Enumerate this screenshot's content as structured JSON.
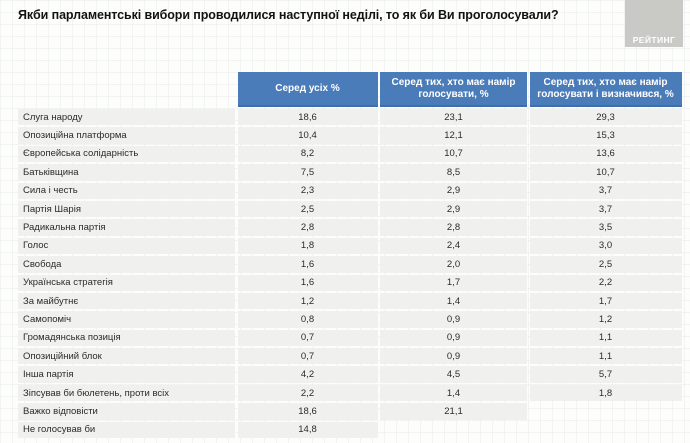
{
  "title": "Якби парламентські вибори проводилися наступної неділі, то як би Ви проголосували?",
  "logo": {
    "label": "РЕЙТИНГ"
  },
  "colors": {
    "header_bg": "#4a7cb9",
    "header_border": "#3f6ea8",
    "row_bg": "#f0f0ef",
    "logo_bg": "#c9c9c6",
    "logo_text": "#ffffff",
    "title_text": "#121212"
  },
  "chart_data": {
    "type": "table",
    "title": "Якби парламентські вибори проводилися наступної неділі, то як би Ви проголосували?",
    "columns": [
      "Серед усіх %",
      "Серед тих, хто має намір голосувати, %",
      "Серед тих, хто має намір голосувати і визначився, %"
    ],
    "rows": [
      {
        "label": "Слуга народу",
        "values": [
          "18,6",
          "23,1",
          "29,3"
        ]
      },
      {
        "label": "Опозиційна платформа",
        "values": [
          "10,4",
          "12,1",
          "15,3"
        ]
      },
      {
        "label": "Європейська солідарність",
        "values": [
          "8,2",
          "10,7",
          "13,6"
        ]
      },
      {
        "label": "Батьківщина",
        "values": [
          "7,5",
          "8,5",
          "10,7"
        ]
      },
      {
        "label": "Сила і честь",
        "values": [
          "2,3",
          "2,9",
          "3,7"
        ]
      },
      {
        "label": "Партія Шарія",
        "values": [
          "2,5",
          "2,9",
          "3,7"
        ]
      },
      {
        "label": "Радикальна партія",
        "values": [
          "2,8",
          "2,8",
          "3,5"
        ]
      },
      {
        "label": "Голос",
        "values": [
          "1,8",
          "2,4",
          "3,0"
        ]
      },
      {
        "label": "Свобода",
        "values": [
          "1,6",
          "2,0",
          "2,5"
        ]
      },
      {
        "label": "Українська стратегія",
        "values": [
          "1,6",
          "1,7",
          "2,2"
        ]
      },
      {
        "label": "За майбутнє",
        "values": [
          "1,2",
          "1,4",
          "1,7"
        ]
      },
      {
        "label": "Самопоміч",
        "values": [
          "0,8",
          "0,9",
          "1,2"
        ]
      },
      {
        "label": "Громадянська позиція",
        "values": [
          "0,7",
          "0,9",
          "1,1"
        ]
      },
      {
        "label": "Опозиційний блок",
        "values": [
          "0,7",
          "0,9",
          "1,1"
        ]
      },
      {
        "label": "Інша партія",
        "values": [
          "4,2",
          "4,5",
          "5,7"
        ]
      },
      {
        "label": "Зіпсував би бюлетень, проти всіх",
        "values": [
          "2,2",
          "1,4",
          "1,8"
        ]
      },
      {
        "label": "Важко відповісти",
        "values": [
          "18,6",
          "21,1",
          null
        ]
      },
      {
        "label": "Не голосував би",
        "values": [
          "14,8",
          null,
          null
        ]
      }
    ]
  }
}
